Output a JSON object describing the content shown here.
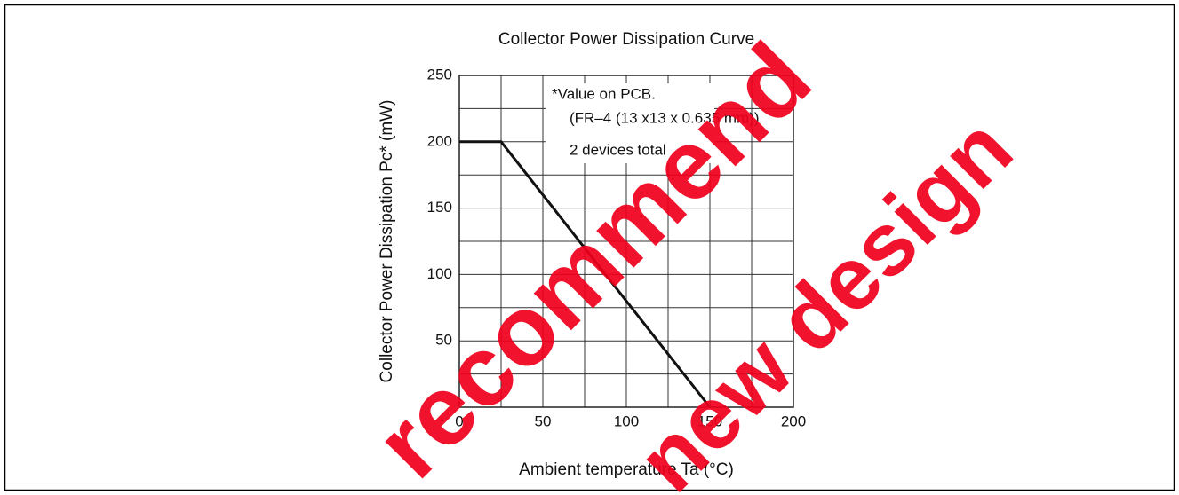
{
  "chart_data": {
    "type": "line",
    "title": "Collector Power Dissipation Curve",
    "x_label": "Ambient temperature Ta (°C)",
    "y_label": "Collector Power Dissipation Pc* (mW)",
    "annotations": [
      "*Value on PCB.",
      "(FR–4 (13 x13 x 0.635 mm))",
      "2 devices total"
    ],
    "watermark": [
      "recommend",
      "new design"
    ],
    "x": [
      0,
      25,
      150
    ],
    "series": [
      {
        "color": "#111111",
        "values": [
          200,
          200,
          0
        ]
      }
    ],
    "xlim": [
      0,
      200
    ],
    "ylim": [
      0,
      250
    ],
    "xticks": [
      0,
      50,
      100,
      150,
      200
    ],
    "yticks": [
      50,
      100,
      150,
      200,
      250
    ],
    "xminorticks": [
      25,
      75,
      125,
      175
    ],
    "yminorticks": [
      25,
      75,
      125,
      175,
      225
    ],
    "grid": true
  }
}
